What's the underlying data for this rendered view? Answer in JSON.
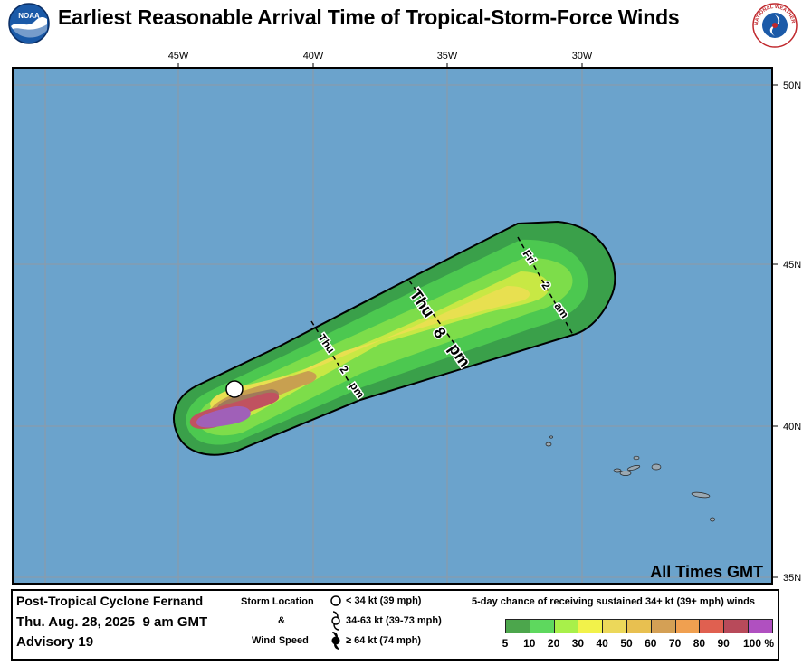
{
  "header": {
    "title": "Earliest Reasonable Arrival Time of Tropical-Storm-Force Winds",
    "noaa_logo_text": "NOAA",
    "nws_logo_text": "NATIONAL WEATHER SERVICE"
  },
  "map": {
    "ocean_color": "#6ba3cc",
    "longitude_labels": [
      "45W",
      "40W",
      "35W",
      "30W"
    ],
    "latitude_labels": [
      "50N",
      "45N",
      "40N",
      "35N"
    ],
    "time_labels": {
      "thu_2pm": [
        "Thu",
        "2",
        "pm"
      ],
      "thu_8pm": [
        "Thu",
        "8",
        "pm"
      ],
      "fri_2am": [
        "Fri",
        "2",
        "am"
      ]
    },
    "timezone_note": "All Times GMT"
  },
  "legend": {
    "storm_name": "Post-Tropical Cyclone Fernand",
    "date": "Thu. Aug. 28, 2025  9 am GMT",
    "advisory": "Advisory 19",
    "storm_location_label": "Storm Location",
    "ampersand": "&",
    "wind_speed_label": "Wind Speed",
    "wind_classes": [
      "< 34 kt (39 mph)",
      "34-63 kt (39-73 mph)",
      "≥ 64 kt (74 mph)"
    ],
    "probability_title": "5-day chance of receiving sustained 34+ kt (39+ mph) winds",
    "probability_scale": [
      {
        "label": "5",
        "color": "#4ca64c"
      },
      {
        "label": "10",
        "color": "#5ed85e"
      },
      {
        "label": "20",
        "color": "#a8f04a"
      },
      {
        "label": "30",
        "color": "#f2f24a"
      },
      {
        "label": "40",
        "color": "#ecd85a"
      },
      {
        "label": "50",
        "color": "#e8c050"
      },
      {
        "label": "60",
        "color": "#d4a055"
      },
      {
        "label": "70",
        "color": "#f0a050"
      },
      {
        "label": "80",
        "color": "#e06050"
      },
      {
        "label": "90",
        "color": "#b84a5a"
      },
      {
        "label": "100 %",
        "color": "#b050c0"
      }
    ]
  }
}
